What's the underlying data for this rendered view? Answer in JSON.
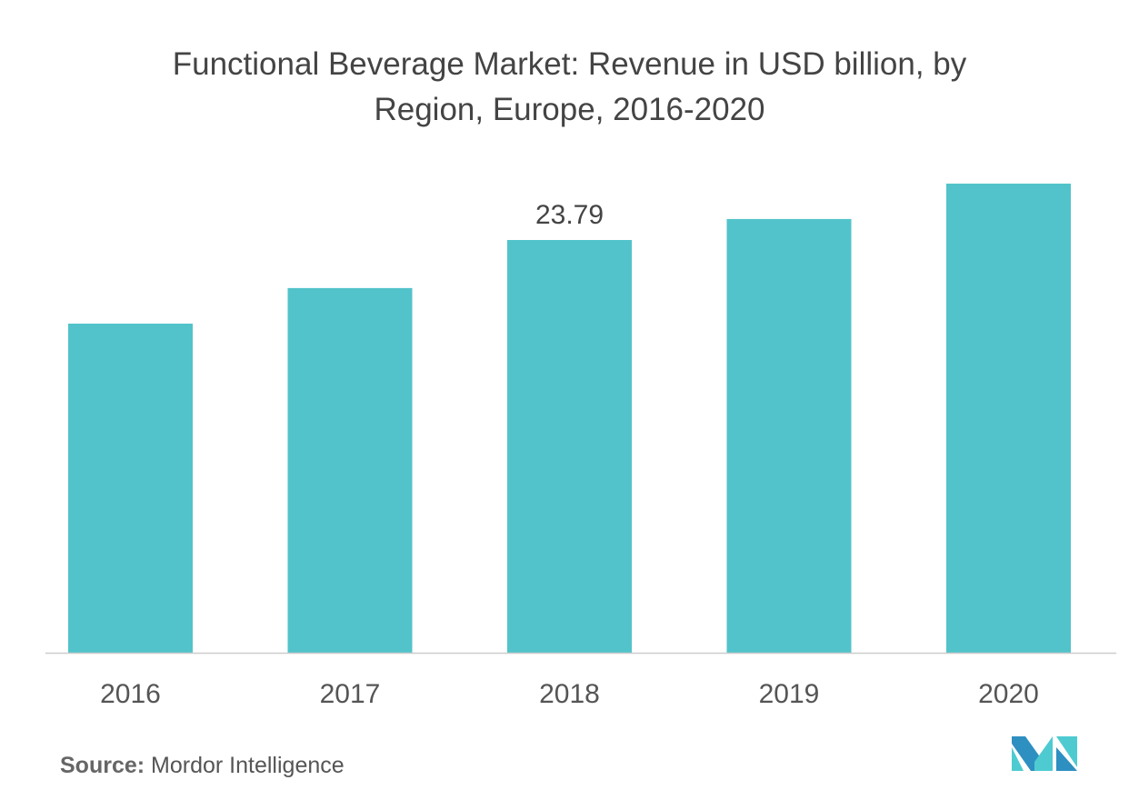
{
  "chart_data": {
    "type": "bar",
    "title_lines": [
      "Functional Beverage Market: Revenue in USD billion, by",
      "Region, Europe, 2016-2020"
    ],
    "categories": [
      "2016",
      "2017",
      "2018",
      "2019",
      "2020"
    ],
    "values": [
      18.97,
      21.02,
      23.79,
      25.0,
      27.04
    ],
    "data_labels": [
      null,
      null,
      "23.79",
      null,
      null
    ],
    "xlabel": "",
    "ylabel": "",
    "ylim": [
      0,
      28
    ],
    "grid": false,
    "bar_color": "#52C3CA"
  },
  "source": {
    "label": "Source:",
    "text": "Mordor Intelligence"
  },
  "logo": {
    "colors": [
      "#2E8FC1",
      "#4ECBD0"
    ]
  }
}
